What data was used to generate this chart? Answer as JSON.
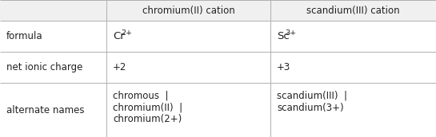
{
  "col_headers": [
    "chromium(II) cation",
    "scandium(III) cation"
  ],
  "row_labels": [
    "formula",
    "net ionic charge",
    "alternate names"
  ],
  "formula_col1_base": "Cr",
  "formula_col1_sup": "2+",
  "formula_col2_base": "Sc",
  "formula_col2_sup": "3+",
  "charge_col1": "+2",
  "charge_col2": "+3",
  "names_col1_lines": [
    "chromous  |",
    "chromium(II)  |",
    "chromium(2+)"
  ],
  "names_col2_lines": [
    "scandium(III)  |",
    "scandium(3+)"
  ],
  "bg_color": "#ffffff",
  "header_bg": "#f0f0f0",
  "line_color": "#b0b0b0",
  "text_color": "#222222",
  "font_size": 8.5,
  "col_bounds": [
    0,
    133,
    338,
    545
  ],
  "row_tops": [
    172,
    146,
    107,
    68,
    0
  ]
}
